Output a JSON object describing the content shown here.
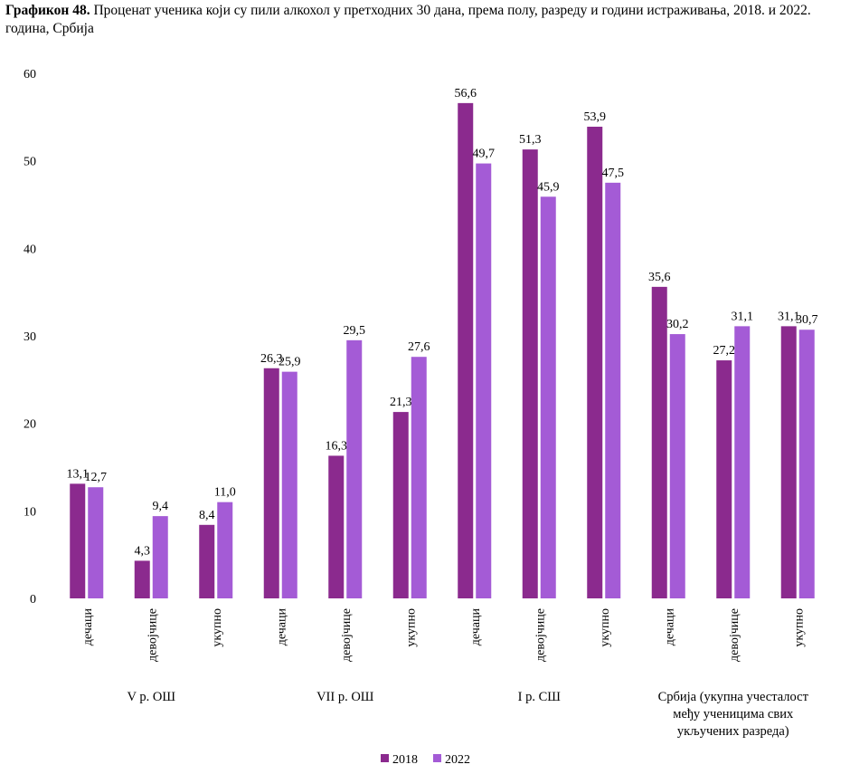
{
  "title": {
    "bold": "Графикон 48.",
    "text": " Проценат ученика који су пили алкохол у претходних 30 дана, према полу, разреду и години истраживања,  2018. и 2022. година, Србија"
  },
  "colors": {
    "s2018": "#8b2a8e",
    "s2022": "#a45bd6"
  },
  "chart_data": {
    "type": "bar",
    "title": "Проценат ученика који су пили алкохол у претходних 30 дана, према полу, разреду и години истраживања,  2018. и 2022. година, Србија",
    "ylim": [
      0,
      60
    ],
    "yticks": [
      0,
      10,
      20,
      30,
      40,
      50,
      60
    ],
    "grid": false,
    "legend": "bottom",
    "categories": [
      "дечаци",
      "девојчице",
      "укупно",
      "дечаци",
      "девојчице",
      "укупно",
      "дечаци",
      "девојчице",
      "укупно",
      "дечаци",
      "девојчице",
      "укупно"
    ],
    "groups": [
      {
        "label": "V р. ОШ",
        "lines": [
          "V р. ОШ"
        ]
      },
      {
        "label": "VII р. ОШ",
        "lines": [
          "VII р. ОШ"
        ]
      },
      {
        "label": "I р. СШ",
        "lines": [
          "I р. СШ"
        ]
      },
      {
        "label": "Србија (укупна учесталост међу ученицима свих укључених разреда)",
        "lines": [
          "Србија (укупна учесталост",
          "међу ученицима свих",
          "укључених разреда)"
        ]
      }
    ],
    "series": [
      {
        "name": "2018",
        "values": [
          13.1,
          4.3,
          8.4,
          26.3,
          16.3,
          21.3,
          56.6,
          51.3,
          53.9,
          35.6,
          27.2,
          31.1
        ],
        "labels": [
          "13,1",
          "4,3",
          "8,4",
          "26,3",
          "16,3",
          "21,3",
          "56,6",
          "51,3",
          "53,9",
          "35,6",
          "27,2",
          "31,1"
        ]
      },
      {
        "name": "2022",
        "values": [
          12.7,
          9.4,
          11.0,
          25.9,
          29.5,
          27.6,
          49.7,
          45.9,
          47.5,
          30.2,
          31.1,
          30.7
        ],
        "labels": [
          "12,7",
          "9,4",
          "11,0",
          "25,9",
          "29,5",
          "27,6",
          "49,7",
          "45,9",
          "47,5",
          "30,2",
          "31,1",
          "30,7"
        ]
      }
    ]
  }
}
